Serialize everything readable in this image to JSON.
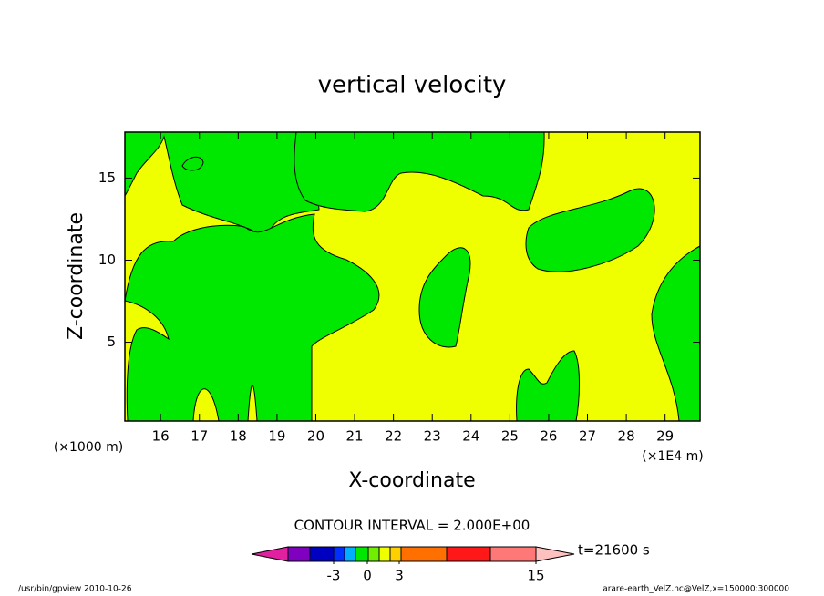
{
  "chart_data": {
    "type": "contour",
    "title": "vertical velocity",
    "x_label": "X-coordinate",
    "y_label": "Z-coordinate",
    "x_unit": "(×1E4 m)",
    "y_unit": "(×1000 m)",
    "xlim": [
      15.08,
      29.9
    ],
    "ylim": [
      0.2,
      17.8
    ],
    "xticks": [
      16,
      17,
      18,
      19,
      20,
      21,
      22,
      23,
      24,
      25,
      26,
      27,
      28,
      29
    ],
    "yticks": [
      5,
      10,
      15
    ],
    "contour_interval": "CONTOUR INTERVAL = 2.000E+00",
    "time": "t=21600 s",
    "colorbar": {
      "colors": [
        "#e020a0",
        "#8000c0",
        "#0000c0",
        "#0030ff",
        "#00b0ff",
        "#00e800",
        "#70f000",
        "#f0ff00",
        "#ffd000",
        "#ff7000",
        "#ff1818",
        "#ff7878",
        "#ffc0c0"
      ],
      "ticks": [
        -3,
        0,
        3,
        15
      ]
    },
    "footer_left": "/usr/bin/gpview  2010-10-26",
    "footer_right": "arare-earth_VelZ.nc@VelZ,x=150000:300000"
  }
}
